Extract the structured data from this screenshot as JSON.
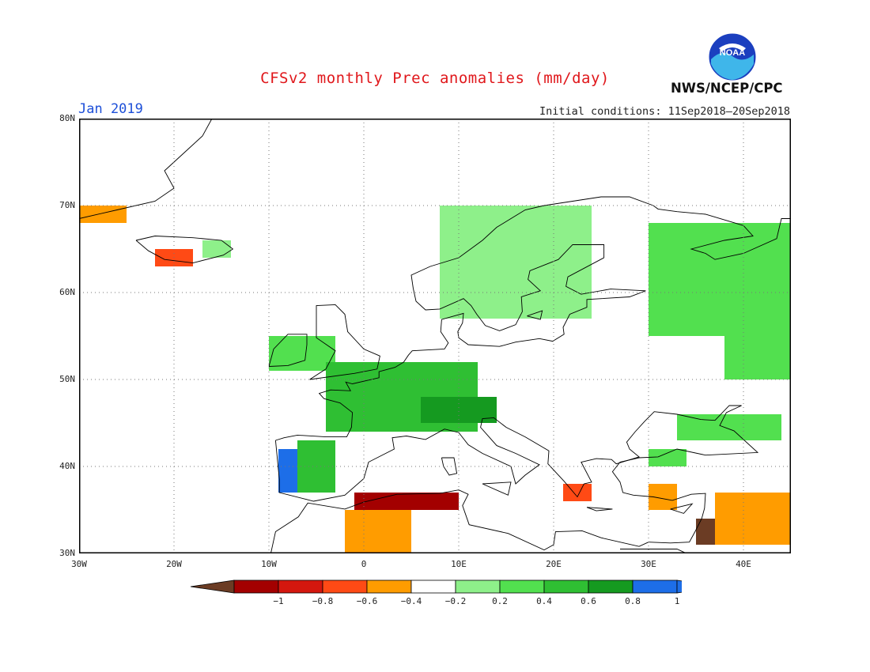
{
  "header": {
    "title": "CFSv2 monthly Prec anomalies (mm/day)",
    "month": "Jan 2019",
    "initial_conditions": "Initial conditions: 11Sep2018–20Sep2018",
    "agency": "NWS/NCEP/CPC",
    "logo_text": "NOAA",
    "logo_icon": "noaa-seal-icon"
  },
  "map": {
    "projection": "equirectangular",
    "lon_range": [
      -30,
      45
    ],
    "lat_range": [
      30,
      80
    ],
    "grid": "dotted",
    "lat_labels": [
      "80N",
      "70N",
      "60N",
      "50N",
      "40N",
      "30N"
    ],
    "lon_labels": [
      "30W",
      "20W",
      "10W",
      "0",
      "10E",
      "20E",
      "30E",
      "40E"
    ]
  },
  "colorbar": {
    "labels": [
      "−1",
      "−0.8",
      "−0.6",
      "−0.4",
      "−0.2",
      "0.2",
      "0.4",
      "0.6",
      "0.8",
      "1"
    ],
    "colors": [
      "#6b3c24",
      "#a30000",
      "#d4170e",
      "#ff4a15",
      "#ff9c00",
      "#ffffff",
      "#8ef08a",
      "#52e04f",
      "#2fbf33",
      "#159a20",
      "#1d6ee8"
    ],
    "bins": [
      "< -1",
      "-1 to -0.8",
      "-0.8 to -0.6",
      "-0.6 to -0.4",
      "-0.4 to -0.2",
      "-0.2 to 0.2",
      "0.2 to 0.4",
      "0.4 to 0.6",
      "0.6 to 0.8",
      "0.8 to 1",
      "> 1"
    ]
  },
  "anomaly_regions": [
    {
      "region": "Greenland east coast",
      "lon": [
        -30,
        -25
      ],
      "lat": [
        68,
        70
      ],
      "value": -0.3
    },
    {
      "region": "Iceland south",
      "lon": [
        -22,
        -18
      ],
      "lat": [
        63,
        65
      ],
      "value": -0.5
    },
    {
      "region": "Iceland east",
      "lon": [
        -17,
        -14
      ],
      "lat": [
        64,
        66
      ],
      "value": 0.3
    },
    {
      "region": "Portugal",
      "lon": [
        -9,
        -6
      ],
      "lat": [
        37,
        42
      ],
      "value": 1.1
    },
    {
      "region": "NW Spain",
      "lon": [
        -7,
        -3
      ],
      "lat": [
        37,
        43
      ],
      "value": 0.6
    },
    {
      "region": "Ireland / UK west",
      "lon": [
        -10,
        -3
      ],
      "lat": [
        51,
        55
      ],
      "value": 0.4
    },
    {
      "region": "France / Benelux / Germany",
      "lon": [
        -4,
        12
      ],
      "lat": [
        44,
        52
      ],
      "value": 0.6
    },
    {
      "region": "Alps",
      "lon": [
        6,
        14
      ],
      "lat": [
        45,
        48
      ],
      "value": 0.8
    },
    {
      "region": "Scandinavia",
      "lon": [
        8,
        24
      ],
      "lat": [
        57,
        70
      ],
      "value": 0.3
    },
    {
      "region": "Northern Russia",
      "lon": [
        30,
        45
      ],
      "lat": [
        55,
        68
      ],
      "value": 0.4
    },
    {
      "region": "Central Russia",
      "lon": [
        38,
        45
      ],
      "lat": [
        50,
        58
      ],
      "value": 0.5
    },
    {
      "region": "Black Sea",
      "lon": [
        33,
        44
      ],
      "lat": [
        43,
        46
      ],
      "value": 0.4
    },
    {
      "region": "Turkey north",
      "lon": [
        30,
        34
      ],
      "lat": [
        40,
        42
      ],
      "value": 0.5
    },
    {
      "region": "Algeria coast",
      "lon": [
        -1,
        10
      ],
      "lat": [
        35,
        37
      ],
      "value": -0.9
    },
    {
      "region": "Algeria interior",
      "lon": [
        -2,
        5
      ],
      "lat": [
        30,
        35
      ],
      "value": -0.3
    },
    {
      "region": "Greece south",
      "lon": [
        21,
        24
      ],
      "lat": [
        36,
        38
      ],
      "value": -0.6
    },
    {
      "region": "Cyprus / Turkey south",
      "lon": [
        30,
        33
      ],
      "lat": [
        35,
        38
      ],
      "value": -0.3
    },
    {
      "region": "Levant",
      "lon": [
        35,
        37
      ],
      "lat": [
        31,
        34
      ],
      "value": -1.1
    },
    {
      "region": "Syria / Iraq",
      "lon": [
        37,
        45
      ],
      "lat": [
        31,
        37
      ],
      "value": -0.4
    }
  ]
}
